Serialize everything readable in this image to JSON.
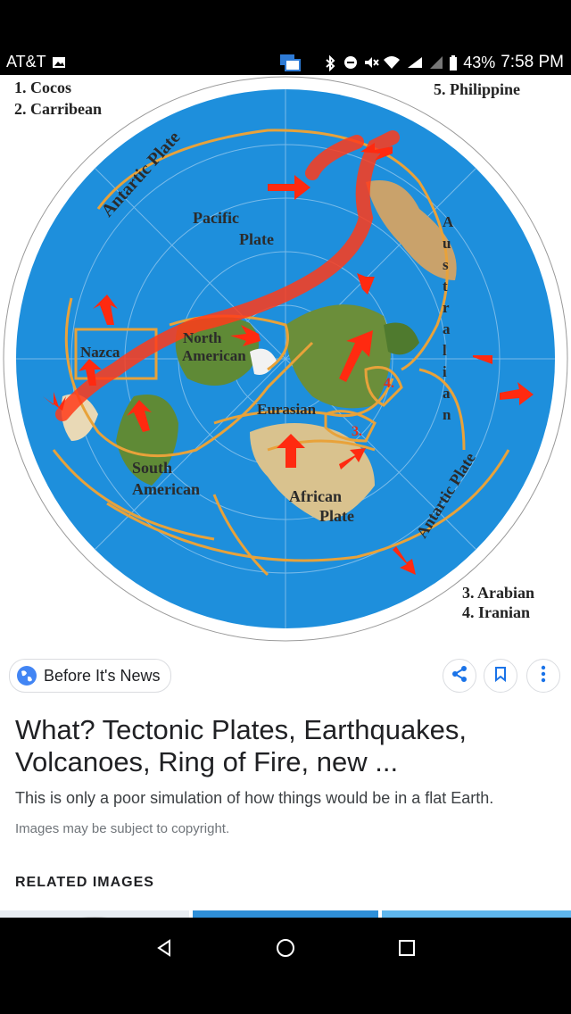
{
  "status_bar": {
    "carrier": "AT&T",
    "battery": "43%",
    "time": "7:58 PM"
  },
  "map": {
    "legend_left": [
      "1. Cocos",
      "2. Carribean"
    ],
    "legend_top_right": "5. Philippine",
    "legend_bottom_right": [
      "3. Arabian",
      "4. Iranian"
    ],
    "plates": {
      "antartic_top": "Antartic Plate",
      "pacific_1": "Pacific",
      "pacific_2": "Plate",
      "nazca": "Nazca",
      "north_1": "North",
      "north_2": "American",
      "eurasian": "Eurasian",
      "south_1": "South",
      "south_2": "American",
      "african_1": "African",
      "african_2": "Plate",
      "antartic_right": "Antartic Plate",
      "australian_letters": [
        "A",
        "u",
        "s",
        "t",
        "r",
        "a",
        "l",
        "i",
        "a",
        "n"
      ],
      "num_3": "3.",
      "num_4": "4."
    },
    "colors": {
      "ocean": "#1e8fdc",
      "boundary": "#e8a23a",
      "ring": "#ff3b1a",
      "land": "#6b8e3a"
    }
  },
  "source": {
    "name": "Before It's News",
    "icon": "globe-icon"
  },
  "actions": {
    "share_icon": "share-icon",
    "save_icon": "bookmark-icon",
    "more_icon": "more-vert-icon"
  },
  "result": {
    "title": "What? Tectonic Plates, Earthquakes, Volcanoes, Ring of Fire, new ...",
    "description": "This is only a poor simulation of how things would be in a flat Earth.",
    "copyright": "Images may be subject to copyright."
  },
  "related": {
    "heading": "RELATED IMAGES"
  },
  "nav": {
    "back": "back-icon",
    "home": "home-icon",
    "recents": "recents-icon"
  }
}
